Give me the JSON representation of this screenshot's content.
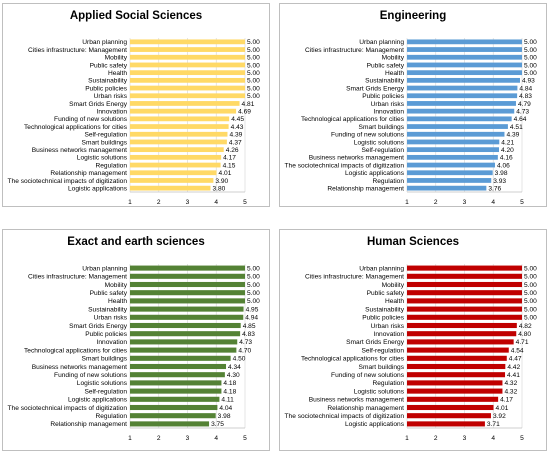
{
  "chart_data": [
    {
      "type": "bar",
      "orientation": "horizontal",
      "title": "Applied Social Sciences",
      "color": "#FFD966",
      "xlim": [
        1,
        5
      ],
      "xticks": [
        1,
        2,
        3,
        4,
        5
      ],
      "categories": [
        "Urban planning",
        "Cities infrastructure: Management",
        "Mobility",
        "Public safety",
        "Health",
        "Sustainability",
        "Public policies",
        "Urban risks",
        "Smart Grids Energy",
        "Innovation",
        "Funding of new solutions",
        "Technological applications for cities",
        "Self-regulation",
        "Smart buildings",
        "Business networks management",
        "Logistic solutions",
        "Regulation",
        "Relationship management",
        "The sociotechnical impacts of digitization",
        "Logistic applications"
      ],
      "values": [
        5.0,
        5.0,
        5.0,
        5.0,
        5.0,
        5.0,
        5.0,
        5.0,
        4.81,
        4.69,
        4.45,
        4.43,
        4.39,
        4.37,
        4.26,
        4.17,
        4.15,
        4.01,
        3.9,
        3.8
      ],
      "labels": [
        "5.00",
        "5.00",
        "5.00",
        "5.00",
        "5.00",
        "5.00",
        "5.00",
        "5.00",
        "4.81",
        "4.69",
        "4.45",
        "4.43",
        "4.39",
        "4.37",
        "4.26",
        "4.17",
        "4.15",
        "4.01",
        "3.90",
        "3.80"
      ]
    },
    {
      "type": "bar",
      "orientation": "horizontal",
      "title": "Engineering",
      "color": "#5B9BD5",
      "xlim": [
        1,
        5
      ],
      "xticks": [
        1,
        2,
        3,
        4,
        5
      ],
      "categories": [
        "Urban planning",
        "Cities infrastructure: Management",
        "Mobility",
        "Public safety",
        "Health",
        "Sustainability",
        "Smart Grids Energy",
        "Public policies",
        "Urban risks",
        "Innovation",
        "Technological applications for cities",
        "Smart buildings",
        "Funding of new solutions",
        "Logistic solutions",
        "Self-regulation",
        "Business networks management",
        "The sociotechnical impacts of digitization",
        "Logistic applications",
        "Regulation",
        "Relationship management"
      ],
      "values": [
        5.0,
        5.0,
        5.0,
        5.0,
        5.0,
        4.93,
        4.84,
        4.83,
        4.79,
        4.73,
        4.64,
        4.51,
        4.39,
        4.21,
        4.2,
        4.16,
        4.06,
        3.98,
        3.93,
        3.76
      ],
      "labels": [
        "5.00",
        "5.00",
        "5.00",
        "5.00",
        "5.00",
        "4.93",
        "4.84",
        "4.83",
        "4.79",
        "4.73",
        "4.64",
        "4.51",
        "4.39",
        "4.21",
        "4.20",
        "4.16",
        "4.06",
        "3.98",
        "3.93",
        "3.76"
      ]
    },
    {
      "type": "bar",
      "orientation": "horizontal",
      "title": "Exact and earth sciences",
      "color": "#548235",
      "xlim": [
        1,
        5
      ],
      "xticks": [
        1,
        2,
        3,
        4,
        5
      ],
      "categories": [
        "Urban planning",
        "Cities infrastructure: Management",
        "Mobility",
        "Public safety",
        "Health",
        "Sustainability",
        "Urban risks",
        "Smart Grids Energy",
        "Public policies",
        "Innovation",
        "Technological applications for cities",
        "Smart buildings",
        "Business networks management",
        "Funding of new solutions",
        "Logistic solutions",
        "Self-regulation",
        "Logistic applications",
        "The sociotechnical impacts of digitization",
        "Regulation",
        "Relationship management"
      ],
      "values": [
        5.0,
        5.0,
        5.0,
        5.0,
        5.0,
        4.95,
        4.94,
        4.85,
        4.83,
        4.73,
        4.7,
        4.5,
        4.34,
        4.3,
        4.18,
        4.18,
        4.11,
        4.04,
        3.98,
        3.75
      ],
      "labels": [
        "5.00",
        "5.00",
        "5.00",
        "5.00",
        "5.00",
        "4.95",
        "4.94",
        "4.85",
        "4.83",
        "4.73",
        "4.70",
        "4.50",
        "4.34",
        "4.30",
        "4.18",
        "4.18",
        "4.11",
        "4.04",
        "3.98",
        "3.75"
      ]
    },
    {
      "type": "bar",
      "orientation": "horizontal",
      "title": "Human Sciences",
      "color": "#C00000",
      "xlim": [
        1,
        5
      ],
      "xticks": [
        1,
        2,
        3,
        4,
        5
      ],
      "categories": [
        "Urban planning",
        "Cities infrastructure: Management",
        "Mobility",
        "Public safety",
        "Health",
        "Sustainability",
        "Public policies",
        "Urban risks",
        "Innovation",
        "Smart Grids Energy",
        "Self-regulation",
        "Technological applications for cities",
        "Smart buildings",
        "Funding of new solutions",
        "Regulation",
        "Logistic solutions",
        "Business networks management",
        "Relationship management",
        "The sociotechnical impacts of digitization",
        "Logistic applications"
      ],
      "values": [
        5.0,
        5.0,
        5.0,
        5.0,
        5.0,
        5.0,
        5.0,
        4.82,
        4.8,
        4.71,
        4.54,
        4.47,
        4.42,
        4.41,
        4.32,
        4.32,
        4.17,
        4.01,
        3.92,
        3.71
      ],
      "labels": [
        "5.00",
        "5.00",
        "5.00",
        "5.00",
        "5.00",
        "5.00",
        "5.00",
        "4.82",
        "4.80",
        "4.71",
        "4.54",
        "4.47",
        "4.42",
        "4.41",
        "4.32",
        "4.32",
        "4.17",
        "4.01",
        "3.92",
        "3.71"
      ]
    }
  ]
}
